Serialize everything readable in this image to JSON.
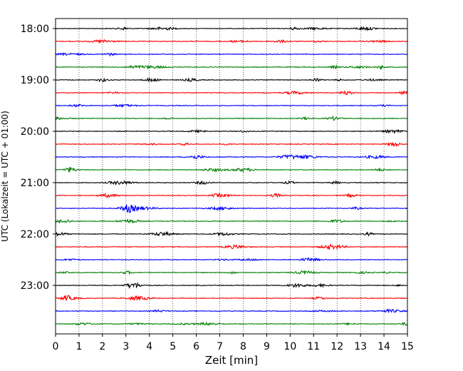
{
  "chart_data": {
    "type": "line",
    "title": "",
    "xlabel": "Zeit  [min]",
    "ylabel": "UTC (Lokalzeit = UTC + 01:00)",
    "xlim": [
      0,
      15
    ],
    "x_ticks": [
      "0",
      "1",
      "2",
      "3",
      "4",
      "5",
      "6",
      "7",
      "8",
      "9",
      "10",
      "11",
      "12",
      "13",
      "14",
      "15"
    ],
    "y_ticks": [
      "18:00",
      "19:00",
      "20:00",
      "21:00",
      "22:00",
      "23:00"
    ],
    "grid": "vertical-dotted",
    "trace_colors": [
      "#000000",
      "#ff0000",
      "#0000ff",
      "#008000"
    ],
    "traces": [
      {
        "start": "18:00",
        "color": "#000000"
      },
      {
        "start": "18:15",
        "color": "#ff0000"
      },
      {
        "start": "18:30",
        "color": "#0000ff"
      },
      {
        "start": "18:45",
        "color": "#008000"
      },
      {
        "start": "19:00",
        "color": "#000000"
      },
      {
        "start": "19:15",
        "color": "#ff0000"
      },
      {
        "start": "19:30",
        "color": "#0000ff"
      },
      {
        "start": "19:45",
        "color": "#008000"
      },
      {
        "start": "20:00",
        "color": "#000000"
      },
      {
        "start": "20:15",
        "color": "#ff0000"
      },
      {
        "start": "20:30",
        "color": "#0000ff"
      },
      {
        "start": "20:45",
        "color": "#008000"
      },
      {
        "start": "21:00",
        "color": "#000000"
      },
      {
        "start": "21:15",
        "color": "#ff0000"
      },
      {
        "start": "21:30",
        "color": "#0000ff"
      },
      {
        "start": "21:45",
        "color": "#008000"
      },
      {
        "start": "22:00",
        "color": "#000000"
      },
      {
        "start": "22:15",
        "color": "#ff0000"
      },
      {
        "start": "22:30",
        "color": "#0000ff"
      },
      {
        "start": "22:45",
        "color": "#008000"
      },
      {
        "start": "23:00",
        "color": "#000000"
      },
      {
        "start": "23:15",
        "color": "#ff0000"
      },
      {
        "start": "23:30",
        "color": "#0000ff"
      },
      {
        "start": "23:45",
        "color": "#008000"
      }
    ]
  }
}
